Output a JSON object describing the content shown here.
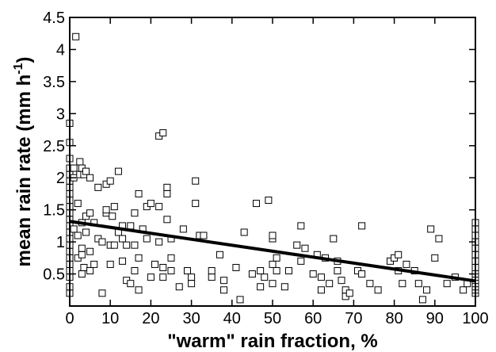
{
  "chart_data": {
    "type": "scatter",
    "xlabel": "\"warm\" rain fraction, %",
    "ylabel": "mean rain rate (mm h",
    "ylabel_sup": "-1",
    "ylabel_end": ")",
    "xlim": [
      0,
      100
    ],
    "ylim": [
      0,
      4.5
    ],
    "x_ticks": [
      0,
      10,
      20,
      30,
      40,
      50,
      60,
      70,
      80,
      90,
      100
    ],
    "y_ticks": [
      0.5,
      1,
      1.5,
      2,
      2.5,
      3,
      3.5,
      4,
      4.5
    ],
    "y_tick_labels": [
      "0.5",
      "1",
      "1.5",
      "2",
      "2.5",
      "3",
      "3.5",
      "4",
      "4.5"
    ],
    "marker": "open-square",
    "series": [
      {
        "points": [
          [
            0,
            0.2
          ],
          [
            0,
            0.3
          ],
          [
            0,
            0.45
          ],
          [
            0,
            0.55
          ],
          [
            0,
            0.65
          ],
          [
            0,
            0.75
          ],
          [
            0,
            0.85
          ],
          [
            0,
            0.95
          ],
          [
            0,
            1.05
          ],
          [
            0,
            1.15
          ],
          [
            0,
            1.25
          ],
          [
            0,
            1.35
          ],
          [
            0,
            1.45
          ],
          [
            0,
            1.55
          ],
          [
            0,
            1.65
          ],
          [
            0,
            1.75
          ],
          [
            0,
            1.85
          ],
          [
            0,
            1.95
          ],
          [
            0,
            2.05
          ],
          [
            0,
            2.15
          ],
          [
            0,
            2.3
          ],
          [
            0,
            2.55
          ],
          [
            0,
            2.85
          ],
          [
            1,
            1.2
          ],
          [
            1,
            2.15
          ],
          [
            1,
            2.0
          ],
          [
            1.5,
            4.2
          ],
          [
            2,
            0.75
          ],
          [
            2,
            1.1
          ],
          [
            2,
            1.6
          ],
          [
            2.5,
            2.05
          ],
          [
            2.5,
            2.25
          ],
          [
            3,
            0.5
          ],
          [
            3,
            0.8
          ],
          [
            3,
            0.9
          ],
          [
            3,
            1.3
          ],
          [
            3,
            2.15
          ],
          [
            3.5,
            0.6
          ],
          [
            3.5,
            2.05
          ],
          [
            4,
            2.1
          ],
          [
            4,
            1.15
          ],
          [
            4,
            1.4
          ],
          [
            5,
            0.55
          ],
          [
            5,
            0.85
          ],
          [
            5,
            1.45
          ],
          [
            5,
            2.0
          ],
          [
            6,
            0.65
          ],
          [
            6,
            1.3
          ],
          [
            7,
            1.05
          ],
          [
            7,
            1.85
          ],
          [
            8,
            0.2
          ],
          [
            8,
            1.0
          ],
          [
            9,
            1.45
          ],
          [
            9,
            1.5
          ],
          [
            9,
            1.9
          ],
          [
            10,
            0.65
          ],
          [
            10,
            0.95
          ],
          [
            10,
            1.95
          ],
          [
            10.5,
            1.4
          ],
          [
            11,
            0.95
          ],
          [
            11,
            1.55
          ],
          [
            12,
            1.15
          ],
          [
            12,
            2.1
          ],
          [
            13,
            0.7
          ],
          [
            13,
            1.05
          ],
          [
            13,
            1.25
          ],
          [
            14,
            0.4
          ],
          [
            14,
            0.95
          ],
          [
            15,
            1.25
          ],
          [
            15,
            0.35
          ],
          [
            16,
            0.55
          ],
          [
            16,
            0.95
          ],
          [
            16,
            1.45
          ],
          [
            17,
            0.25
          ],
          [
            17,
            0.75
          ],
          [
            17,
            1.75
          ],
          [
            18,
            1.2
          ],
          [
            19,
            1.05
          ],
          [
            19,
            1.55
          ],
          [
            20,
            0.45
          ],
          [
            20,
            1.6
          ],
          [
            21,
            0.65
          ],
          [
            22,
            1.0
          ],
          [
            22,
            1.55
          ],
          [
            22,
            2.65
          ],
          [
            23,
            0.45
          ],
          [
            23,
            0.6
          ],
          [
            23,
            2.7
          ],
          [
            24,
            1.35
          ],
          [
            24,
            1.75
          ],
          [
            24,
            1.85
          ],
          [
            25,
            0.55
          ],
          [
            25,
            0.75
          ],
          [
            25,
            1.05
          ],
          [
            27,
            0.3
          ],
          [
            28,
            1.2
          ],
          [
            29,
            0.55
          ],
          [
            30,
            0.45
          ],
          [
            30,
            0.35
          ],
          [
            31,
            1.6
          ],
          [
            31,
            1.95
          ],
          [
            32,
            1.1
          ],
          [
            33,
            1.1
          ],
          [
            35,
            0.55
          ],
          [
            35,
            0.45
          ],
          [
            37,
            0.8
          ],
          [
            38,
            0.4
          ],
          [
            38,
            0.25
          ],
          [
            41,
            0.6
          ],
          [
            42,
            0.1
          ],
          [
            43,
            1.15
          ],
          [
            45,
            0.5
          ],
          [
            46,
            1.6
          ],
          [
            47,
            0.55
          ],
          [
            47,
            0.3
          ],
          [
            48,
            0.45
          ],
          [
            49,
            1.65
          ],
          [
            50,
            0.65
          ],
          [
            50,
            1.05
          ],
          [
            50,
            1.1
          ],
          [
            50,
            0.35
          ],
          [
            51,
            0.55
          ],
          [
            51,
            0.75
          ],
          [
            53,
            0.3
          ],
          [
            54,
            0.55
          ],
          [
            56,
            0.95
          ],
          [
            57,
            0.7
          ],
          [
            57,
            1.25
          ],
          [
            58,
            0.9
          ],
          [
            60,
            0.5
          ],
          [
            61,
            0.8
          ],
          [
            62,
            0.25
          ],
          [
            62,
            0.45
          ],
          [
            63,
            0.75
          ],
          [
            64,
            0.35
          ],
          [
            65,
            1.05
          ],
          [
            66,
            0.55
          ],
          [
            66,
            0.7
          ],
          [
            67,
            0.4
          ],
          [
            68,
            0.25
          ],
          [
            68,
            0.15
          ],
          [
            69,
            0.2
          ],
          [
            71,
            0.55
          ],
          [
            72,
            0.5
          ],
          [
            72,
            1.25
          ],
          [
            74,
            0.35
          ],
          [
            76,
            0.25
          ],
          [
            79,
            0.7
          ],
          [
            80,
            0.75
          ],
          [
            81,
            0.8
          ],
          [
            81,
            0.55
          ],
          [
            82,
            0.35
          ],
          [
            83,
            0.65
          ],
          [
            85,
            0.55
          ],
          [
            86,
            0.35
          ],
          [
            87,
            0.1
          ],
          [
            88,
            0.25
          ],
          [
            89,
            1.2
          ],
          [
            90,
            0.75
          ],
          [
            91,
            1.05
          ],
          [
            93,
            0.35
          ],
          [
            95,
            0.45
          ],
          [
            97,
            0.25
          ],
          [
            98,
            0.35
          ],
          [
            100,
            0.2
          ],
          [
            100,
            0.25
          ],
          [
            100,
            0.3
          ],
          [
            100,
            0.35
          ],
          [
            100,
            0.4
          ],
          [
            100,
            0.45
          ],
          [
            100,
            0.5
          ],
          [
            100,
            0.55
          ],
          [
            100,
            0.6
          ],
          [
            100,
            0.7
          ],
          [
            100,
            0.8
          ],
          [
            100,
            0.9
          ],
          [
            100,
            1.0
          ],
          [
            100,
            1.1
          ],
          [
            100,
            1.2
          ],
          [
            100,
            1.3
          ]
        ]
      }
    ],
    "regression_line": {
      "x": [
        0,
        100
      ],
      "y": [
        1.32,
        0.39
      ]
    }
  }
}
